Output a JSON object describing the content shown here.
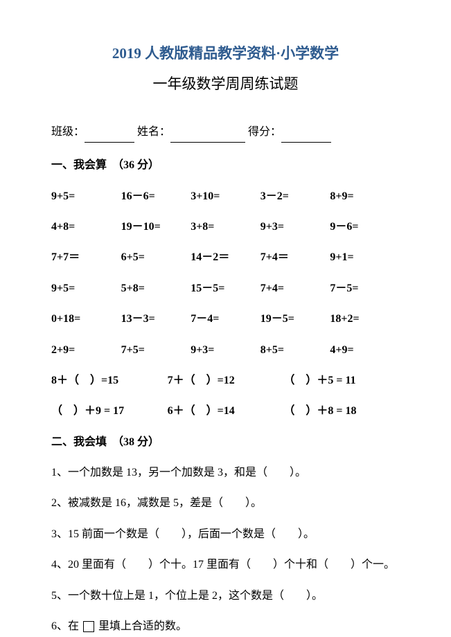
{
  "title_main": "2019 人教版精品教学资料·小学数学",
  "title_sub": "一年级数学周周练试题",
  "info": {
    "class_label": "班级：",
    "name_label": " 姓名：",
    "score_label": " 得分："
  },
  "section1": {
    "header": "一、我会算　（36 分）",
    "rows": [
      [
        "9+5=",
        "16－6=",
        "3+10=",
        "3－2=",
        "8+9="
      ],
      [
        "4+8=",
        "19－10=",
        "3+8=",
        "9+3=",
        "9－6="
      ],
      [
        "7+7＝",
        "6+5=",
        "14－2＝",
        "7+4＝",
        "9+1="
      ],
      [
        "9+5=",
        "5+8=",
        "15－5=",
        "7+4=",
        "7－5="
      ],
      [
        "0+18=",
        "13－3=",
        "7－4=",
        "19－5=",
        "18+2="
      ],
      [
        "2+9=",
        "7+5=",
        "9+3=",
        "8+5=",
        "4+9="
      ]
    ],
    "rows3": [
      [
        "8＋（　）=15",
        "7＋（　）=12",
        "（　）＋5 = 11"
      ],
      [
        "（　）＋9 = 17",
        "6＋（　）=14",
        "（　）＋8 = 18"
      ]
    ]
  },
  "section2": {
    "header": "二、我会填　（38 分）",
    "items": [
      "1、一个加数是 13，另一个加数是 3，和是（　　）。",
      "2、被减数是 16，减数是 5，差是（　　）。",
      "3、15 前面一个数是（　　），后面一个数是（　　）。",
      "4、20 里面有（　　）个十。17 里面有（　　）个十和（　　）个一。",
      "5、一个数十位上是 1，个位上是 2，这个数是（　　）。"
    ],
    "item6_prefix": "6、在 ",
    "item6_suffix": " 里填上合适的数。"
  }
}
